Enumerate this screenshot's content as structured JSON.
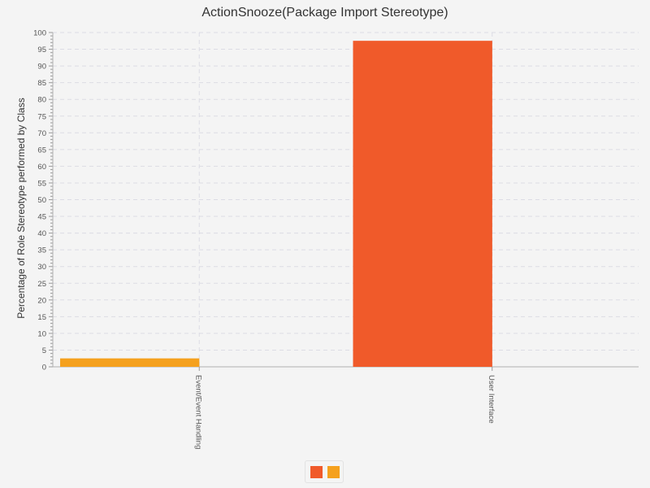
{
  "chart_data": {
    "type": "bar",
    "title": "ActionSnooze(Package Import Stereotype)",
    "xlabel": "",
    "ylabel": "Percentage of Role Stereotype performed by Class",
    "categories": [
      "Event/Event Handling",
      "User Interface"
    ],
    "series": [
      {
        "color": "#f05a2a",
        "values": [
          0,
          97.5
        ]
      },
      {
        "color": "#f5a11e",
        "values": [
          2.5,
          0
        ]
      }
    ],
    "ylim": [
      0,
      100
    ],
    "yticks": [
      0,
      5,
      10,
      15,
      20,
      25,
      30,
      35,
      40,
      45,
      50,
      55,
      60,
      65,
      70,
      75,
      80,
      85,
      90,
      95,
      100
    ],
    "grid": true,
    "legend_position": "bottom"
  }
}
